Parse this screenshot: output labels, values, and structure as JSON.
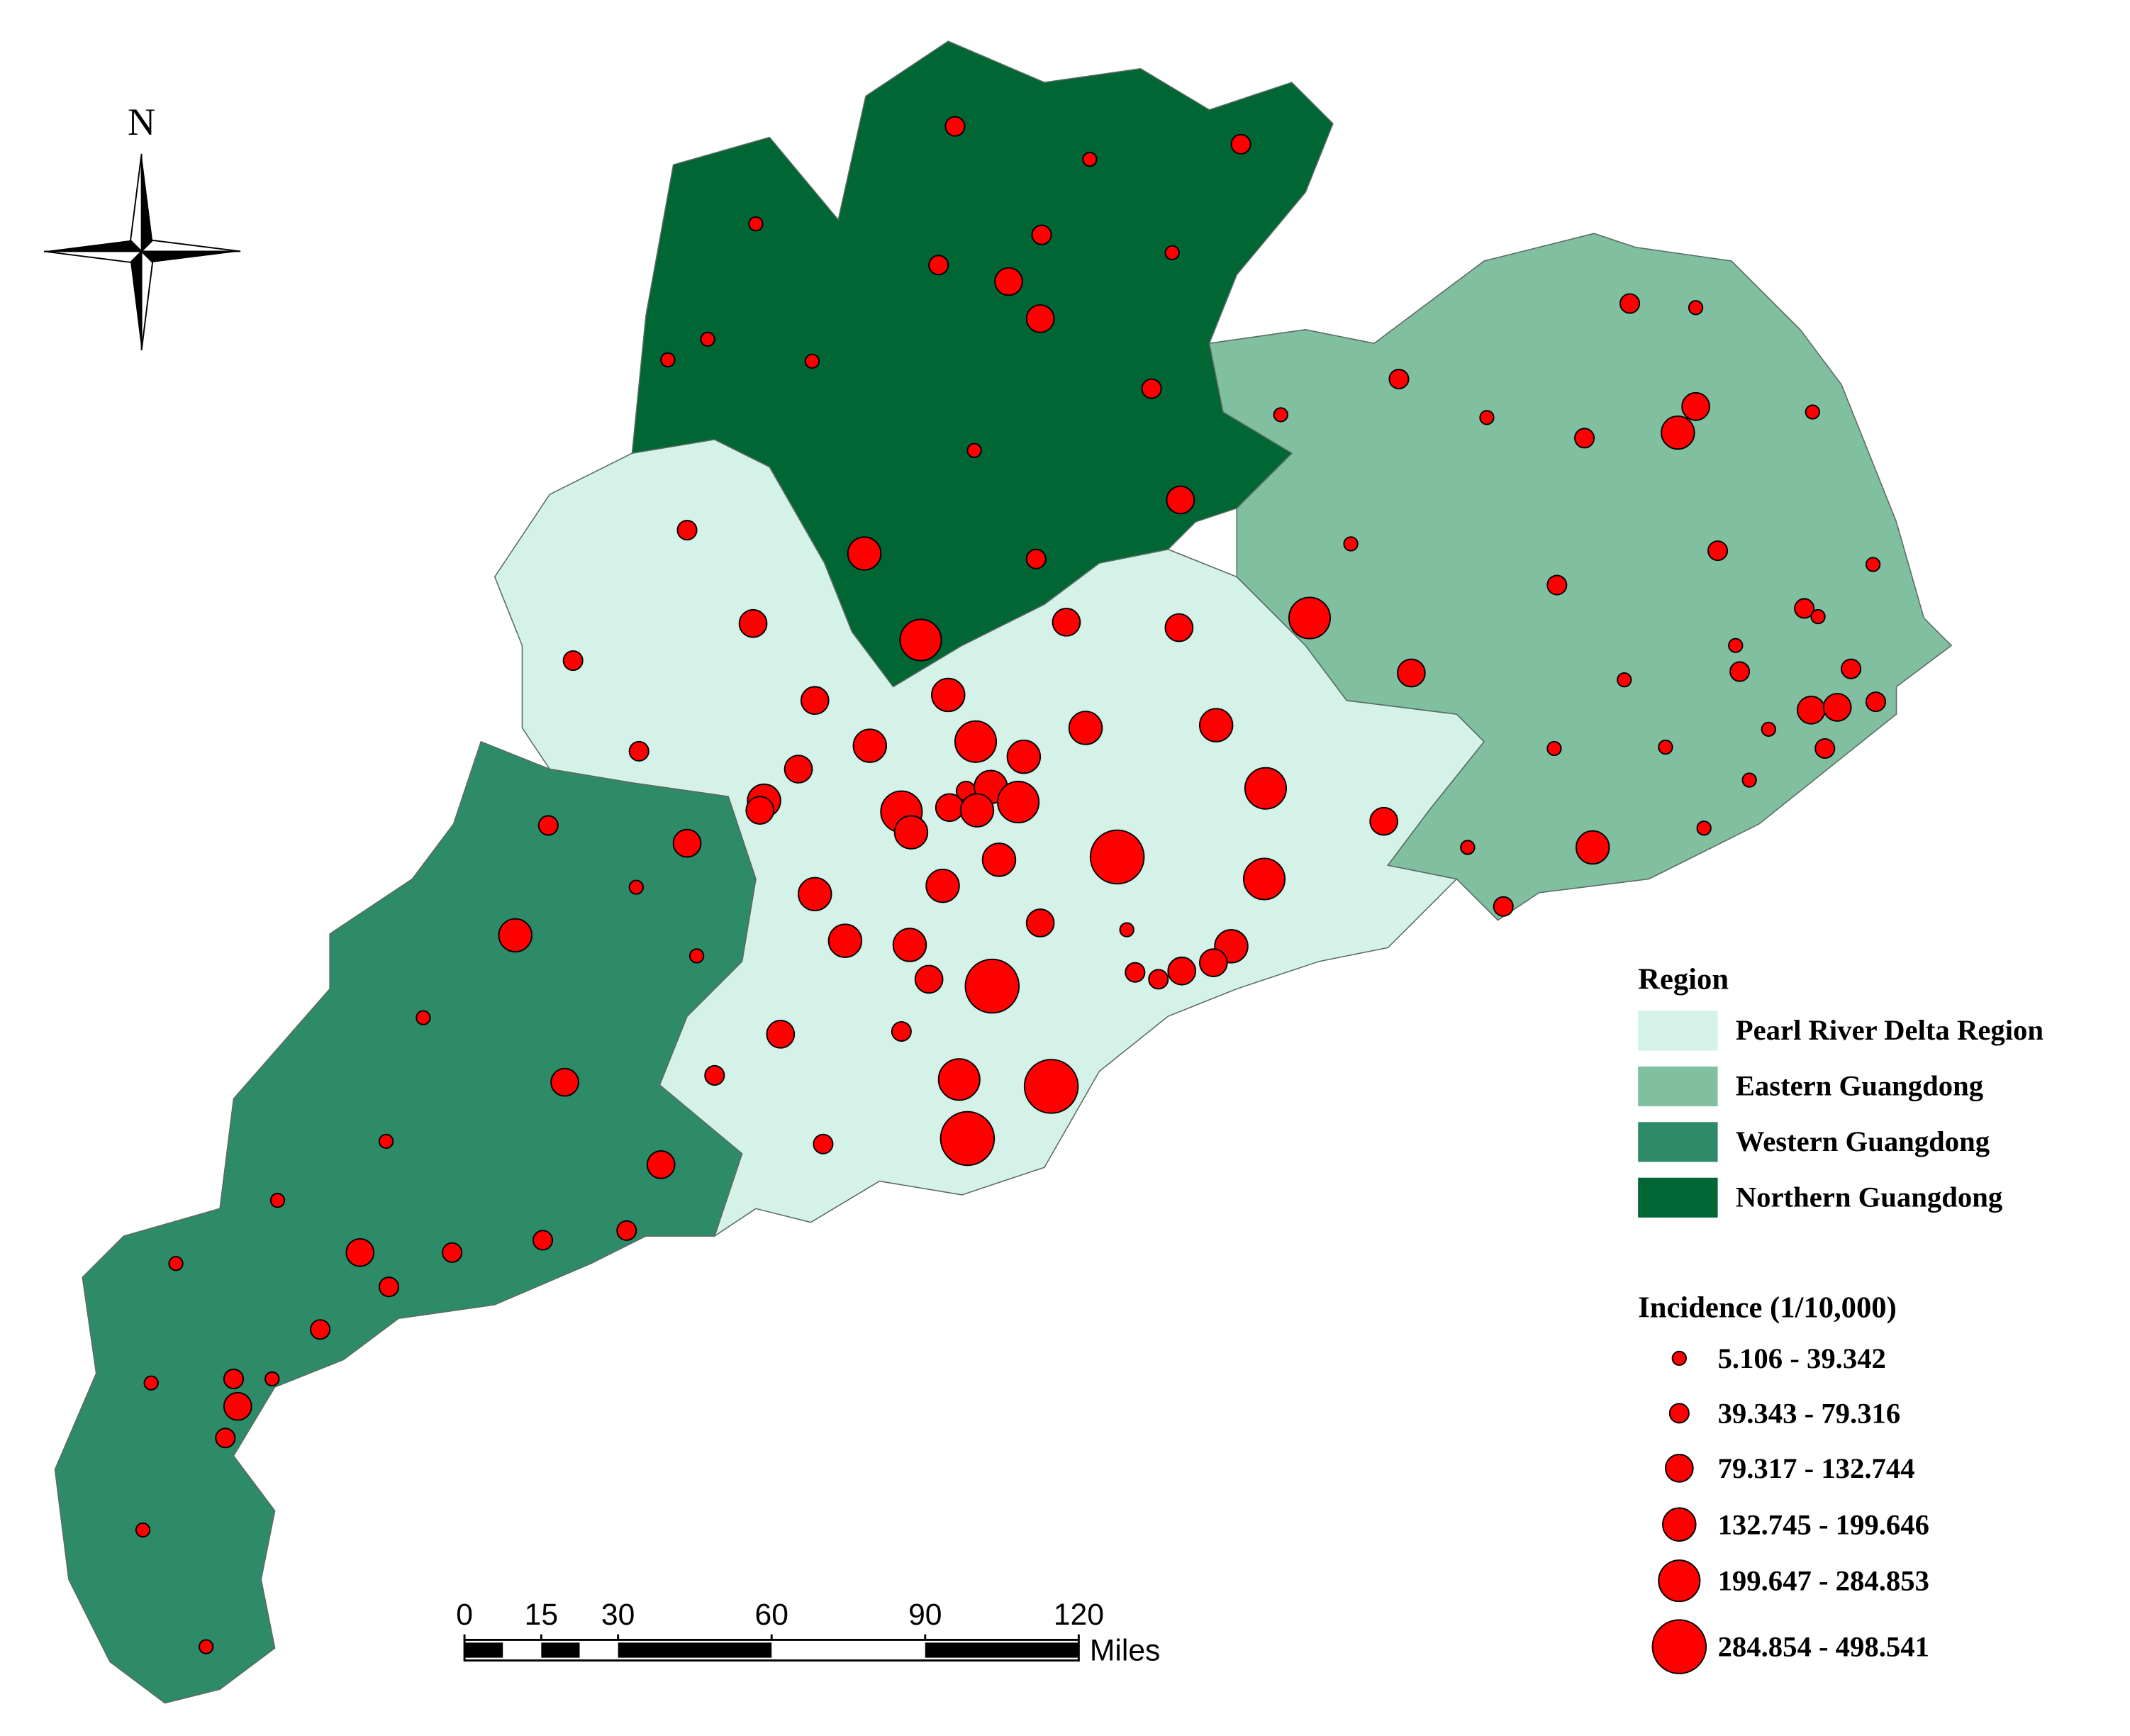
{
  "north_arrow": {
    "label": "N"
  },
  "legend": {
    "region": {
      "title": "Region",
      "items": [
        {
          "name": "Pearl River Delta Region",
          "color": "#d4f2e7"
        },
        {
          "name": "Eastern Guangdong",
          "color": "#80c0a0"
        },
        {
          "name": "Western Guangdong",
          "color": "#2e8b68"
        },
        {
          "name": "Northern Guangdong",
          "color": "#006633"
        }
      ]
    },
    "incidence": {
      "title": "Incidence (1/10,000)",
      "symbol_color": "#ff0000",
      "classes": [
        "5.106 - 39.342",
        "39.343 - 79.316",
        "79.317 - 132.744",
        "132.745 - 199.646",
        "199.647 - 284.853",
        "284.854 - 498.541"
      ]
    }
  },
  "scale_bar": {
    "ticks": [
      0,
      15,
      30,
      60,
      90,
      120
    ],
    "unit": "Miles"
  }
}
